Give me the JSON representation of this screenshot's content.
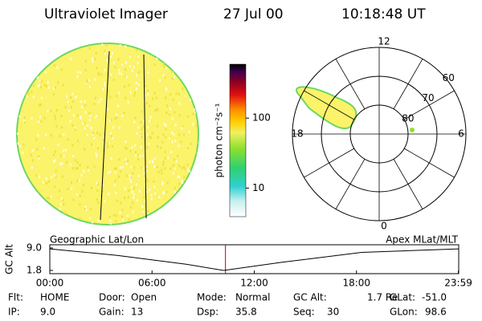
{
  "header": {
    "title": "Ultraviolet Imager",
    "date": "27 Jul 00",
    "time": "10:18:48 UT"
  },
  "colorbar": {
    "label": "photon cm⁻²s⁻¹",
    "clim": [
      3.9,
      590
    ],
    "ticks": [
      10,
      100
    ],
    "log": true
  },
  "polar": {
    "mlat_lim": [
      90,
      60
    ],
    "mlat_ticks": [
      60,
      70,
      80
    ],
    "mlt_ticks": [
      0,
      6,
      12,
      18
    ]
  },
  "altitude_plot": {
    "left_title": "Geographic Lat/Lon",
    "right_title": "Apex MLat/MLT",
    "ylabel": "GC Alt",
    "xlim": [
      0,
      24
    ],
    "ylim": [
      1.8,
      9.0
    ],
    "yticks": [
      {
        "value": 9.0,
        "label": "9.0"
      },
      {
        "value": 1.8,
        "label": "1.8"
      }
    ],
    "xticks": [
      {
        "value": 0,
        "label": "00:00"
      },
      {
        "value": 6,
        "label": "06:00"
      },
      {
        "value": 12,
        "label": "12:00"
      },
      {
        "value": 18,
        "label": "18:00"
      },
      {
        "value": 23.98,
        "label": "23:59"
      }
    ],
    "x": [
      0,
      4,
      8,
      10.2,
      13.6,
      18.3,
      24
    ],
    "values": [
      8.7,
      6.6,
      3.8,
      1.8,
      4.4,
      7.6,
      8.7
    ],
    "now_hours": 10.31,
    "line_color": "#000000",
    "now_color": "#c00000"
  },
  "footer": {
    "fields": [
      {
        "label": "Flt:",
        "value": "HOME"
      },
      {
        "label": "IP:",
        "value": "9.0"
      },
      {
        "label": "Door:",
        "value": "Open"
      },
      {
        "label": "Gain:",
        "value": "13"
      },
      {
        "label": "Mode:",
        "value": "Normal"
      },
      {
        "label": "Dsp:",
        "value": "35.8"
      },
      {
        "label": "GC Alt:",
        "value": "1.7 Re"
      },
      {
        "label": "Seq:",
        "value": "30"
      },
      {
        "label": "GLat:",
        "value": "-51.0"
      },
      {
        "label": "GLon:",
        "value": "98.6"
      }
    ]
  }
}
